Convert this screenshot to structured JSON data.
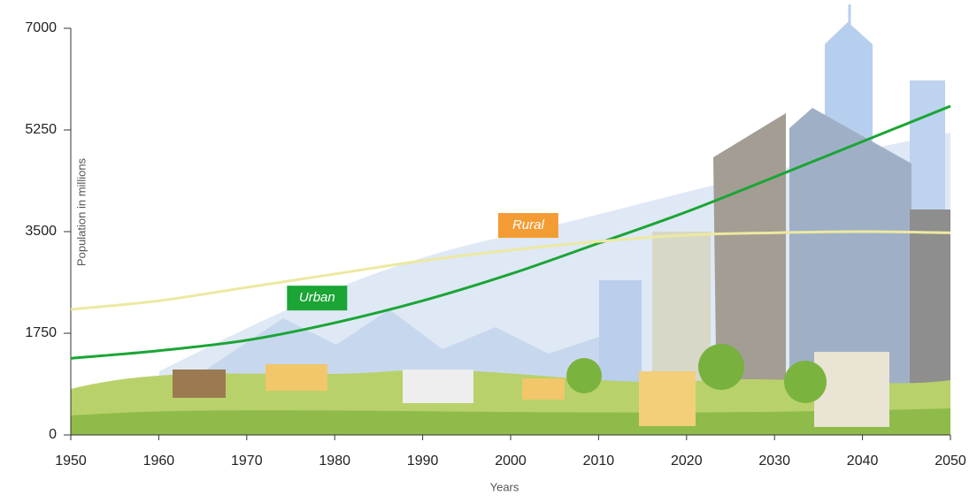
{
  "chart_data": {
    "type": "line",
    "x_label": "Years",
    "y_label": "Population in millions",
    "x": [
      1950,
      1960,
      1970,
      1980,
      1990,
      2000,
      2010,
      2020,
      2030,
      2040,
      2050
    ],
    "series": [
      {
        "name": "Urban",
        "color": "#1aa535",
        "label_color": "#1aa535",
        "values": [
          1320,
          1450,
          1630,
          1930,
          2310,
          2770,
          3300,
          3840,
          4440,
          5050,
          5660
        ]
      },
      {
        "name": "Rural",
        "color": "#ece9a0",
        "label_color": "#f39c34",
        "values": [
          2160,
          2310,
          2540,
          2770,
          3000,
          3180,
          3330,
          3440,
          3480,
          3500,
          3480
        ]
      }
    ],
    "xlim": [
      1950,
      2050
    ],
    "ylim": [
      0,
      7000
    ],
    "xticks": [
      1950,
      1960,
      1970,
      1980,
      1990,
      2000,
      2010,
      2020,
      2030,
      2040,
      2050
    ],
    "yticks": [
      0,
      1750,
      3500,
      5250,
      7000
    ]
  }
}
